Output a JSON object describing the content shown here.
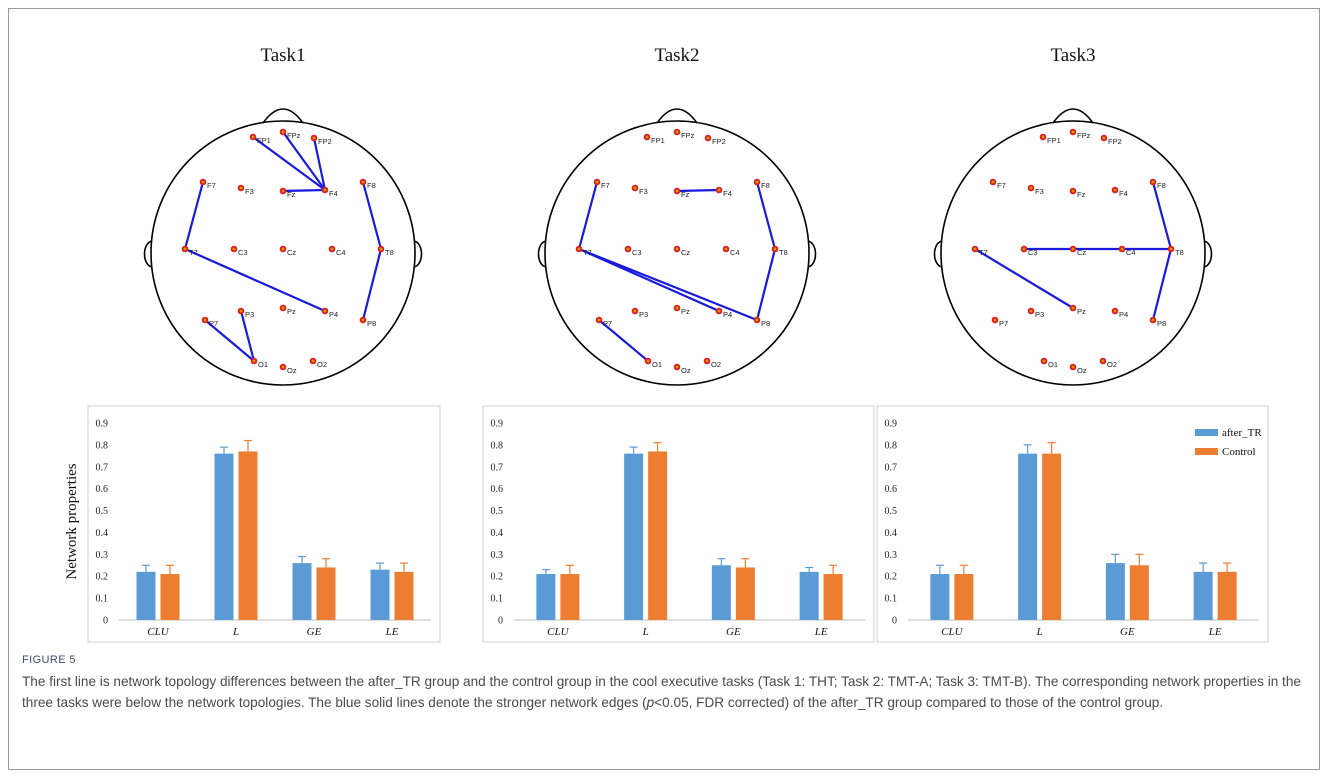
{
  "figure": {
    "label": "FIGURE 5",
    "caption": {
      "part1": "The first line is network topology differences between the after_TR group and the control group in the cool executive tasks (Task 1: THT; Task 2: TMT-A; Task 3: TMT-B). The corresponding network properties in the three tasks were below the network topologies. The blue solid lines denote the stronger network edges (",
      "p_symbol": "p",
      "part2": "<0.05, FDR corrected) of the after_TR group compared to those of the control group."
    }
  },
  "colors": {
    "edge": "#1a1adc",
    "node_outer": "#e02020",
    "node_inner": "#c8a000",
    "after_TR": "#5b9bd5",
    "Control": "#ed7d31",
    "head": "#000000",
    "axis": "#bfbfbf"
  },
  "electrodes": [
    "FP1",
    "FPz",
    "FP2",
    "F7",
    "F3",
    "Fz",
    "F4",
    "F8",
    "T7",
    "C3",
    "Cz",
    "C4",
    "T8",
    "P7",
    "P3",
    "Pz",
    "P4",
    "P8",
    "O1",
    "Oz",
    "O2"
  ],
  "topologies": [
    {
      "title": "Task1",
      "labels": {
        "T7": "T7"
      },
      "edges": [
        [
          "FP1",
          "F4"
        ],
        [
          "FPz",
          "F4"
        ],
        [
          "FP2",
          "F4"
        ],
        [
          "Fz",
          "F4"
        ],
        [
          "F7",
          "T7"
        ],
        [
          "T7",
          "P4"
        ],
        [
          "F8",
          "T8"
        ],
        [
          "T8",
          "P8"
        ],
        [
          "P7",
          "O1"
        ],
        [
          "P3",
          "O1"
        ]
      ]
    },
    {
      "title": "Task2",
      "labels": {
        "T7": "T7"
      },
      "edges": [
        [
          "Fz",
          "F4"
        ],
        [
          "F7",
          "T7"
        ],
        [
          "T7",
          "P4"
        ],
        [
          "T7",
          "P8"
        ],
        [
          "F8",
          "T8"
        ],
        [
          "T8",
          "P8"
        ],
        [
          "P7",
          "O1"
        ]
      ]
    },
    {
      "title": "Task3",
      "labels": {
        "T7": "T7"
      },
      "edges": [
        [
          "F8",
          "T8"
        ],
        [
          "T8",
          "P8"
        ],
        [
          "C3",
          "T8"
        ],
        [
          "T7",
          "Pz"
        ]
      ]
    }
  ],
  "chart_data": [
    {
      "type": "bar",
      "categories": [
        "CLU",
        "L",
        "GE",
        "LE"
      ],
      "ylabel": "Network properties",
      "ylim": [
        0,
        0.9
      ],
      "yticks": [
        "0",
        "0.1",
        "0.2",
        "0.3",
        "0.4",
        "0.5",
        "0.6",
        "0.7",
        "0.8",
        "0.9"
      ],
      "series": [
        {
          "name": "after_TR",
          "values": [
            0.22,
            0.76,
            0.26,
            0.23
          ],
          "errors": [
            0.03,
            0.03,
            0.03,
            0.03
          ]
        },
        {
          "name": "Control",
          "values": [
            0.21,
            0.77,
            0.24,
            0.22
          ],
          "errors": [
            0.04,
            0.05,
            0.04,
            0.04
          ]
        }
      ],
      "legend": "none"
    },
    {
      "type": "bar",
      "categories": [
        "CLU",
        "L",
        "GE",
        "LE"
      ],
      "ylabel": "",
      "ylim": [
        0,
        0.9
      ],
      "yticks": [
        "0",
        "0.1",
        "0.2",
        "0.3",
        "0.4",
        "0.5",
        "0.6",
        "0.7",
        "0.8",
        "0.9"
      ],
      "series": [
        {
          "name": "after_TR",
          "values": [
            0.21,
            0.76,
            0.25,
            0.22
          ],
          "errors": [
            0.02,
            0.03,
            0.03,
            0.02
          ]
        },
        {
          "name": "Control",
          "values": [
            0.21,
            0.77,
            0.24,
            0.21
          ],
          "errors": [
            0.04,
            0.04,
            0.04,
            0.04
          ]
        }
      ],
      "legend": "none"
    },
    {
      "type": "bar",
      "categories": [
        "CLU",
        "L",
        "GE",
        "LE"
      ],
      "ylabel": "",
      "ylim": [
        0,
        0.9
      ],
      "yticks": [
        "0",
        "0.1",
        "0.2",
        "0.3",
        "0.4",
        "0.5",
        "0.6",
        "0.7",
        "0.8",
        "0.9"
      ],
      "series": [
        {
          "name": "after_TR",
          "values": [
            0.21,
            0.76,
            0.26,
            0.22
          ],
          "errors": [
            0.04,
            0.04,
            0.04,
            0.04
          ]
        },
        {
          "name": "Control",
          "values": [
            0.21,
            0.76,
            0.25,
            0.22
          ],
          "errors": [
            0.04,
            0.05,
            0.05,
            0.04
          ]
        }
      ],
      "legend": "top-right"
    }
  ]
}
